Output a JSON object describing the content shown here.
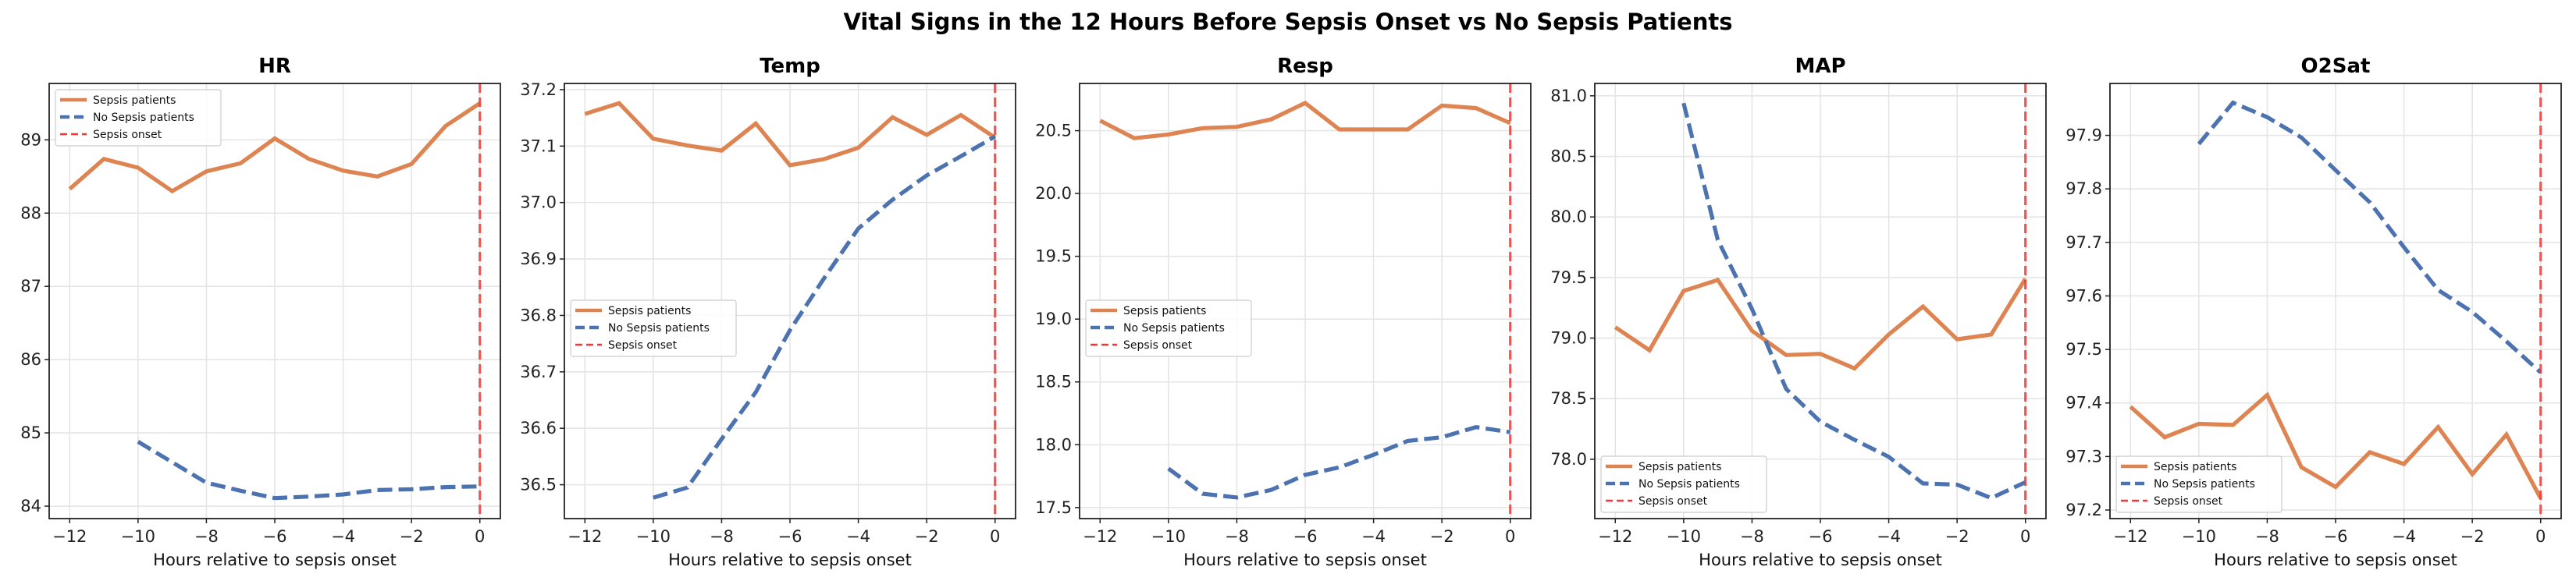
{
  "figure_title": "Vital Signs in the 12 Hours Before Sepsis Onset vs No Sepsis Patients",
  "colors": {
    "sepsis": "#dd8452",
    "no_sepsis": "#4c72b0",
    "onset": "#ff3333",
    "grid": "#e5e5e5",
    "axis": "#222222"
  },
  "chart_data": [
    {
      "type": "line",
      "title": "HR",
      "xlabel": "Hours relative to sepsis onset",
      "ylabel": "",
      "xlim": [
        -12.6,
        0.6
      ],
      "ylim": [
        83.83,
        89.77
      ],
      "xticks": [
        -12,
        -10,
        -8,
        -6,
        -4,
        -2,
        0
      ],
      "xtick_labels": [
        "−12",
        "−10",
        "−8",
        "−6",
        "−4",
        "−2",
        "0"
      ],
      "yticks": [
        84,
        85,
        86,
        87,
        88,
        89
      ],
      "ytick_labels": [
        "84",
        "85",
        "86",
        "87",
        "88",
        "89"
      ],
      "grid": true,
      "legend_position": "upper-left",
      "onset_x": 0,
      "series": [
        {
          "name": "Sepsis patients",
          "style": "solid",
          "x": [
            -12,
            -11,
            -10,
            -9,
            -8,
            -7,
            -6,
            -5,
            -4,
            -3,
            -2,
            -1,
            0
          ],
          "y": [
            88.33,
            88.74,
            88.62,
            88.3,
            88.57,
            88.68,
            89.02,
            88.74,
            88.58,
            88.5,
            88.67,
            89.19,
            89.5
          ]
        },
        {
          "name": "No Sepsis patients",
          "style": "dashed",
          "x": [
            -10,
            -9,
            -8,
            -7,
            -6,
            -5,
            -4,
            -3,
            -2,
            -1,
            0
          ],
          "y": [
            84.88,
            84.6,
            84.32,
            84.21,
            84.11,
            84.13,
            84.16,
            84.22,
            84.23,
            84.26,
            84.27
          ]
        }
      ],
      "legend": [
        "Sepsis patients",
        "No Sepsis patients",
        "Sepsis onset"
      ]
    },
    {
      "type": "line",
      "title": "Temp",
      "xlabel": "Hours relative to sepsis onset",
      "ylabel": "",
      "xlim": [
        -12.6,
        0.6
      ],
      "ylim": [
        36.44,
        37.211
      ],
      "xticks": [
        -12,
        -10,
        -8,
        -6,
        -4,
        -2,
        0
      ],
      "xtick_labels": [
        "−12",
        "−10",
        "−8",
        "−6",
        "−4",
        "−2",
        "0"
      ],
      "yticks": [
        36.5,
        36.6,
        36.7,
        36.8,
        36.9,
        37.0,
        37.1,
        37.2
      ],
      "ytick_labels": [
        "36.5",
        "36.6",
        "36.7",
        "36.8",
        "36.9",
        "37.0",
        "37.1",
        "37.2"
      ],
      "grid": true,
      "legend_position": "center-left",
      "onset_x": 0,
      "series": [
        {
          "name": "Sepsis patients",
          "style": "solid",
          "x": [
            -12,
            -11,
            -10,
            -9,
            -8,
            -7,
            -6,
            -5,
            -4,
            -3,
            -2,
            -1,
            0
          ],
          "y": [
            37.157,
            37.176,
            37.113,
            37.101,
            37.092,
            37.14,
            37.066,
            37.077,
            37.097,
            37.151,
            37.12,
            37.155,
            37.115
          ]
        },
        {
          "name": "No Sepsis patients",
          "style": "dashed",
          "x": [
            -10,
            -9,
            -8,
            -7,
            -6,
            -5,
            -4,
            -3,
            -2,
            -1,
            0
          ],
          "y": [
            36.477,
            36.495,
            36.581,
            36.664,
            36.774,
            36.866,
            36.954,
            37.005,
            37.048,
            37.082,
            37.117
          ]
        }
      ],
      "legend": [
        "Sepsis patients",
        "No Sepsis patients",
        "Sepsis onset"
      ]
    },
    {
      "type": "line",
      "title": "Resp",
      "xlabel": "Hours relative to sepsis onset",
      "ylabel": "",
      "xlim": [
        -12.6,
        0.6
      ],
      "ylim": [
        17.412,
        20.876
      ],
      "xticks": [
        -12,
        -10,
        -8,
        -6,
        -4,
        -2,
        0
      ],
      "xtick_labels": [
        "−12",
        "−10",
        "−8",
        "−6",
        "−4",
        "−2",
        "0"
      ],
      "yticks": [
        17.5,
        18.0,
        18.5,
        19.0,
        19.5,
        20.0,
        20.5
      ],
      "ytick_labels": [
        "17.5",
        "18.0",
        "18.5",
        "19.0",
        "19.5",
        "20.0",
        "20.5"
      ],
      "grid": true,
      "legend_position": "center-left",
      "onset_x": 0,
      "series": [
        {
          "name": "Sepsis patients",
          "style": "solid",
          "x": [
            -12,
            -11,
            -10,
            -9,
            -8,
            -7,
            -6,
            -5,
            -4,
            -3,
            -2,
            -1,
            0
          ],
          "y": [
            20.58,
            20.44,
            20.47,
            20.52,
            20.53,
            20.59,
            20.72,
            20.51,
            20.51,
            20.51,
            20.7,
            20.68,
            20.56
          ]
        },
        {
          "name": "No Sepsis patients",
          "style": "dashed",
          "x": [
            -10,
            -9,
            -8,
            -7,
            -6,
            -5,
            -4,
            -3,
            -2,
            -1,
            0
          ],
          "y": [
            17.81,
            17.61,
            17.58,
            17.64,
            17.76,
            17.82,
            17.92,
            18.03,
            18.06,
            18.14,
            18.1
          ]
        }
      ],
      "legend": [
        "Sepsis patients",
        "No Sepsis patients",
        "Sepsis onset"
      ]
    },
    {
      "type": "line",
      "title": "MAP",
      "xlabel": "Hours relative to sepsis onset",
      "ylabel": "",
      "xlim": [
        -12.6,
        0.6
      ],
      "ylim": [
        77.51,
        81.102
      ],
      "xticks": [
        -12,
        -10,
        -8,
        -6,
        -4,
        -2,
        0
      ],
      "xtick_labels": [
        "−12",
        "−10",
        "−8",
        "−6",
        "−4",
        "−2",
        "0"
      ],
      "yticks": [
        78.0,
        78.5,
        79.0,
        79.5,
        80.0,
        80.5,
        81.0
      ],
      "ytick_labels": [
        "78.0",
        "78.5",
        "79.0",
        "79.5",
        "80.0",
        "80.5",
        "81.0"
      ],
      "grid": true,
      "legend_position": "lower-left",
      "onset_x": 0,
      "series": [
        {
          "name": "Sepsis patients",
          "style": "solid",
          "x": [
            -12,
            -11,
            -10,
            -9,
            -8,
            -7,
            -6,
            -5,
            -4,
            -3,
            -2,
            -1,
            0
          ],
          "y": [
            79.09,
            78.9,
            79.39,
            79.48,
            79.06,
            78.86,
            78.87,
            78.75,
            79.03,
            79.26,
            78.99,
            79.03,
            79.49
          ]
        },
        {
          "name": "No Sepsis patients",
          "style": "dashed",
          "x": [
            -10,
            -9,
            -8,
            -7,
            -6,
            -5,
            -4,
            -3,
            -2,
            -1,
            0
          ],
          "y": [
            80.94,
            79.81,
            79.24,
            78.58,
            78.31,
            78.16,
            78.02,
            77.8,
            77.79,
            77.68,
            77.81
          ]
        }
      ],
      "legend": [
        "Sepsis patients",
        "No Sepsis patients",
        "Sepsis onset"
      ]
    },
    {
      "type": "line",
      "title": "O2Sat",
      "xlabel": "Hours relative to sepsis onset",
      "ylabel": "",
      "xlim": [
        -12.6,
        0.6
      ],
      "ylim": [
        97.184,
        97.997
      ],
      "xticks": [
        -12,
        -10,
        -8,
        -6,
        -4,
        -2,
        0
      ],
      "xtick_labels": [
        "−12",
        "−10",
        "−8",
        "−6",
        "−4",
        "−2",
        "0"
      ],
      "yticks": [
        97.2,
        97.3,
        97.4,
        97.5,
        97.6,
        97.7,
        97.8,
        97.9
      ],
      "ytick_labels": [
        "97.2",
        "97.3",
        "97.4",
        "97.5",
        "97.6",
        "97.7",
        "97.8",
        "97.9"
      ],
      "grid": true,
      "legend_position": "lower-left",
      "onset_x": 0,
      "series": [
        {
          "name": "Sepsis patients",
          "style": "solid",
          "x": [
            -12,
            -11,
            -10,
            -9,
            -8,
            -7,
            -6,
            -5,
            -4,
            -3,
            -2,
            -1,
            0
          ],
          "y": [
            97.393,
            97.336,
            97.361,
            97.359,
            97.415,
            97.28,
            97.243,
            97.308,
            97.286,
            97.355,
            97.267,
            97.341,
            97.222
          ]
        },
        {
          "name": "No Sepsis patients",
          "style": "dashed",
          "x": [
            -10,
            -9,
            -8,
            -7,
            -6,
            -5,
            -4,
            -3,
            -2,
            -1,
            0
          ],
          "y": [
            97.884,
            97.961,
            97.934,
            97.896,
            97.835,
            97.775,
            97.691,
            97.611,
            97.57,
            97.515,
            97.457
          ]
        }
      ],
      "legend": [
        "Sepsis patients",
        "No Sepsis patients",
        "Sepsis onset"
      ]
    }
  ]
}
